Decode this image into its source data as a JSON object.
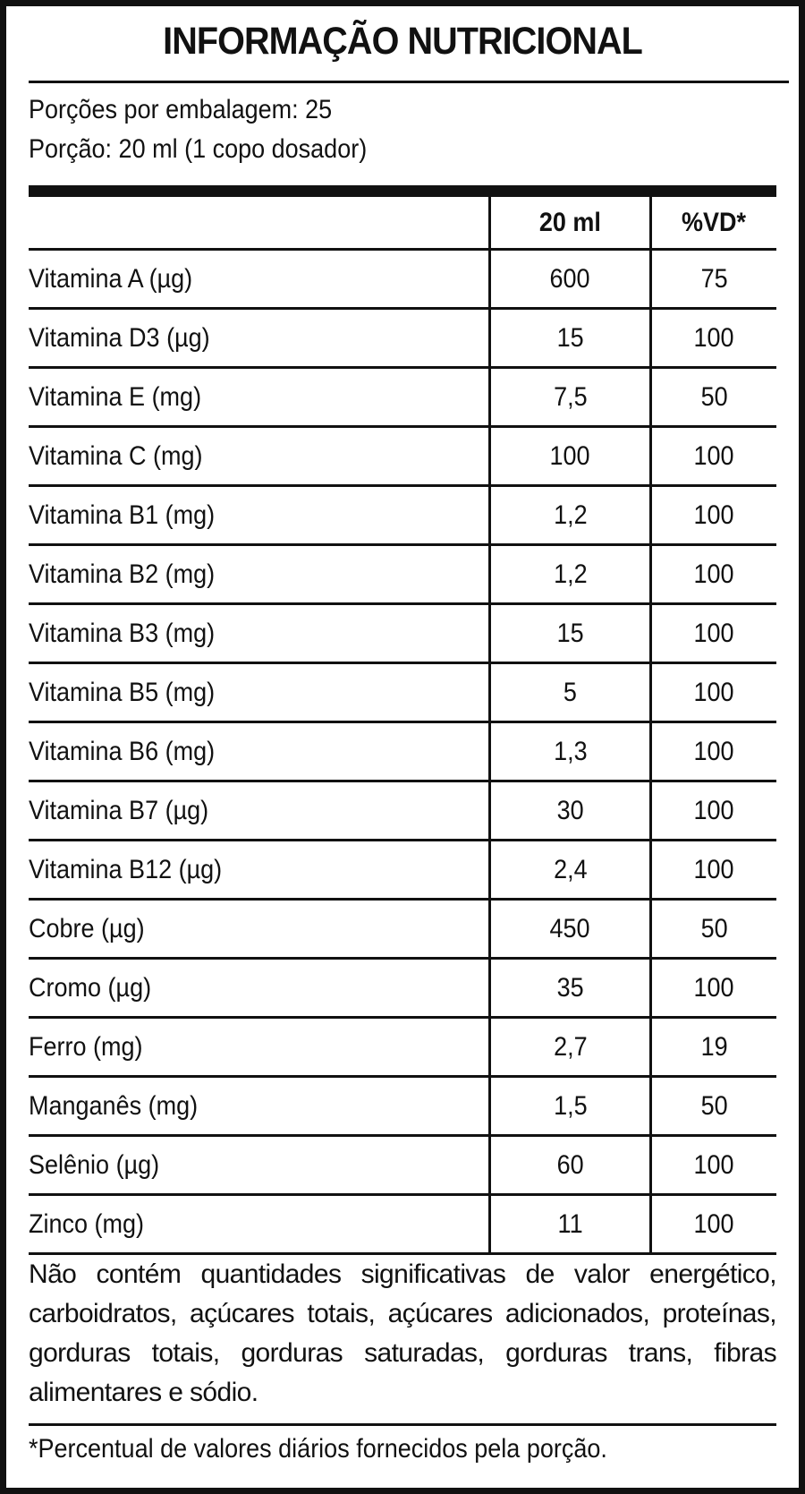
{
  "label": {
    "title": "INFORMAÇÃO NUTRICIONAL",
    "servings_per_package": "Porções por embalagem: 25",
    "serving_size": "Porção: 20 ml (1 copo dosador)",
    "table": {
      "headers": [
        "",
        "20 ml",
        "%VD*"
      ],
      "rows": [
        {
          "nutrient": "Vitamina A (µg)",
          "amount": "600",
          "dv": "75"
        },
        {
          "nutrient": "Vitamina D3 (µg)",
          "amount": "15",
          "dv": "100"
        },
        {
          "nutrient": "Vitamina E (mg)",
          "amount": "7,5",
          "dv": "50"
        },
        {
          "nutrient": "Vitamina C (mg)",
          "amount": "100",
          "dv": "100"
        },
        {
          "nutrient": "Vitamina B1 (mg)",
          "amount": "1,2",
          "dv": "100"
        },
        {
          "nutrient": "Vitamina B2 (mg)",
          "amount": "1,2",
          "dv": "100"
        },
        {
          "nutrient": "Vitamina B3 (mg)",
          "amount": "15",
          "dv": "100"
        },
        {
          "nutrient": "Vitamina B5 (mg)",
          "amount": "5",
          "dv": "100"
        },
        {
          "nutrient": "Vitamina B6 (mg)",
          "amount": "1,3",
          "dv": "100"
        },
        {
          "nutrient": "Vitamina B7 (µg)",
          "amount": "30",
          "dv": "100"
        },
        {
          "nutrient": "Vitamina B12 (µg)",
          "amount": "2,4",
          "dv": "100"
        },
        {
          "nutrient": "Cobre (µg)",
          "amount": "450",
          "dv": "50"
        },
        {
          "nutrient": "Cromo (µg)",
          "amount": "35",
          "dv": "100"
        },
        {
          "nutrient": "Ferro (mg)",
          "amount": "2,7",
          "dv": "19"
        },
        {
          "nutrient": "Manganês (mg)",
          "amount": "1,5",
          "dv": "50"
        },
        {
          "nutrient": "Selênio (µg)",
          "amount": "60",
          "dv": "100"
        },
        {
          "nutrient": "Zinco (mg)",
          "amount": "11",
          "dv": "100"
        }
      ]
    },
    "note": "Não contém quantidades significativas de valor energético, carboidratos, açúcares totais, açúcares adicionados, proteínas, gorduras totais, gorduras saturadas, gorduras trans, fibras alimentares e sódio.",
    "footnote": "*Percentual de valores diários fornecidos pela porção."
  },
  "colors": {
    "ink": "#111111",
    "background": "#ffffff"
  }
}
